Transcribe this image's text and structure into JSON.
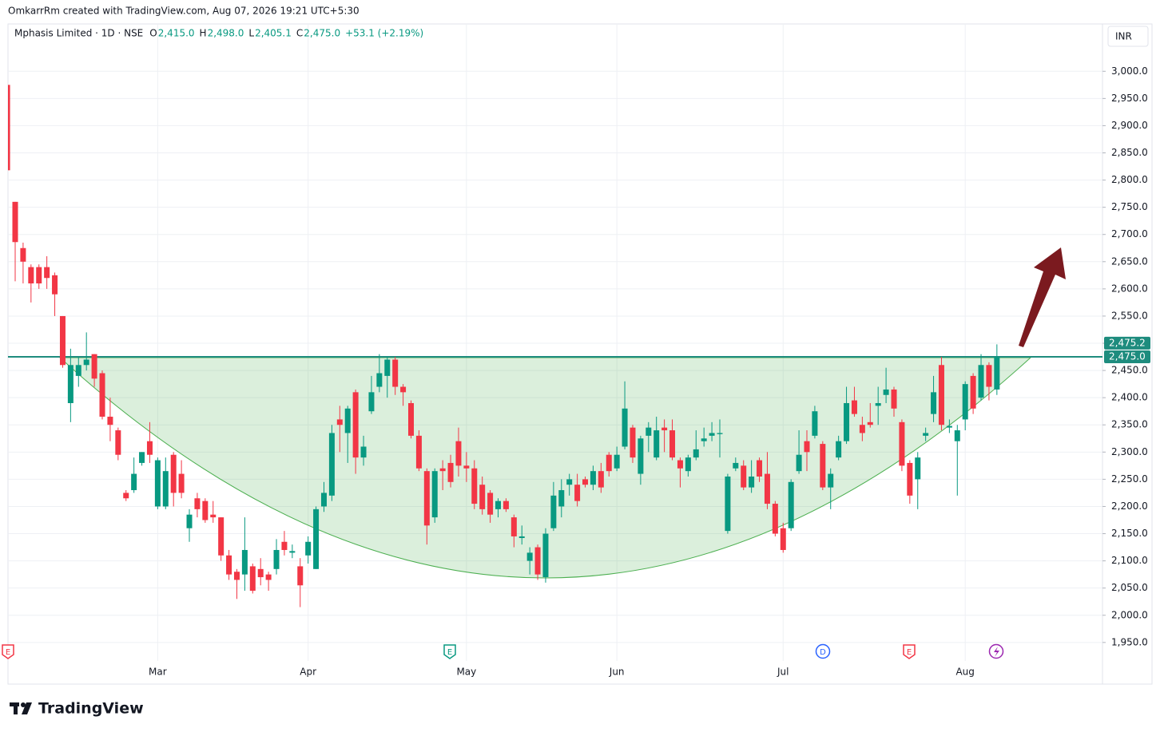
{
  "header": "OmkarrRm created with TradingView.com, Aug 07, 2026 19:21 UTC+5:30",
  "brand": "TradingView",
  "chart_data": {
    "type": "candlestick",
    "title": "Mphasis Limited · 1D · NSE",
    "ohlc_legend": [
      {
        "key": "O",
        "text": "2,415.0"
      },
      {
        "key": "H",
        "text": "2,498.0"
      },
      {
        "key": "L",
        "text": "2,405.1"
      },
      {
        "key": "C",
        "text": "2,475.0"
      }
    ],
    "change": "+53.1 (+2.19%)",
    "currency": "INR",
    "categories": [
      null,
      null,
      null,
      null,
      null,
      null,
      null,
      null,
      null,
      null,
      null,
      null,
      null,
      null,
      null,
      null,
      null,
      null,
      null,
      "Mar",
      null,
      null,
      null,
      null,
      null,
      null,
      null,
      null,
      null,
      null,
      null,
      null,
      null,
      null,
      null,
      null,
      null,
      null,
      "Apr",
      null,
      null,
      null,
      null,
      null,
      null,
      null,
      null,
      null,
      null,
      null,
      null,
      null,
      null,
      null,
      null,
      null,
      null,
      null,
      "May",
      null,
      null,
      null,
      null,
      null,
      null,
      null,
      null,
      null,
      null,
      null,
      null,
      null,
      null,
      null,
      null,
      null,
      null,
      "Jun",
      null,
      null,
      null,
      null,
      null,
      null,
      null,
      null,
      null,
      null,
      null,
      null,
      null,
      null,
      null,
      null,
      null,
      null,
      null,
      null,
      "Jul",
      null,
      null,
      null,
      null,
      null,
      null,
      null,
      null,
      null,
      null,
      null,
      null,
      null,
      null,
      null,
      null,
      null,
      null,
      null,
      null,
      null,
      null,
      "Aug",
      null,
      null,
      null,
      null
    ],
    "open": [
      2975,
      2760,
      2675,
      2640,
      2640,
      2640,
      2625,
      2550,
      2390,
      2440,
      2460,
      2480,
      2445,
      2365,
      2340,
      2225,
      2230,
      2280,
      2320,
      2200,
      2200,
      2295,
      2260,
      2160,
      2215,
      2210,
      2185,
      2180,
      2110,
      2080,
      2075,
      2090,
      2085,
      2075,
      2085,
      2135,
      2115,
      2090,
      2110,
      2085,
      2200,
      2220,
      2360,
      2335,
      2410,
      2290,
      2375,
      2420,
      2440,
      2470,
      2420,
      2390,
      2330,
      2265,
      2180,
      2270,
      2280,
      2320,
      2275,
      2270,
      2240,
      2225,
      2195,
      2210,
      2180,
      2142,
      2100,
      2125,
      2070,
      2160,
      2200,
      2240,
      2240,
      2250,
      2240,
      2265,
      2295,
      2270,
      2310,
      2345,
      2260,
      2330,
      2290,
      2345,
      2340,
      2285,
      2265,
      2290,
      2320,
      2330,
      2333,
      2155,
      2270,
      2275,
      2235,
      2285,
      2260,
      2205,
      2160,
      2160,
      2265,
      2320,
      2330,
      2315,
      2235,
      2290,
      2320,
      2395,
      2350,
      2355,
      2385,
      2405,
      2415,
      2355,
      2280,
      2250,
      2330,
      2370,
      2460,
      2345,
      2320,
      2360,
      2440,
      2400,
      2460,
      2415
    ],
    "high": [
      2978,
      2760,
      2685,
      2645,
      2645,
      2660,
      2630,
      2550,
      2490,
      2475,
      2520,
      2480,
      2450,
      2400,
      2345,
      2230,
      2290,
      2300,
      2355,
      2290,
      2290,
      2300,
      2285,
      2195,
      2225,
      2215,
      2210,
      2180,
      2120,
      2085,
      2180,
      2095,
      2105,
      2080,
      2140,
      2155,
      2130,
      2105,
      2145,
      2200,
      2245,
      2350,
      2385,
      2385,
      2415,
      2330,
      2440,
      2480,
      2475,
      2475,
      2425,
      2395,
      2340,
      2270,
      2270,
      2285,
      2295,
      2345,
      2300,
      2285,
      2255,
      2230,
      2215,
      2215,
      2185,
      2165,
      2125,
      2130,
      2160,
      2245,
      2250,
      2260,
      2260,
      2255,
      2275,
      2280,
      2300,
      2310,
      2430,
      2350,
      2330,
      2355,
      2365,
      2360,
      2360,
      2290,
      2295,
      2340,
      2345,
      2355,
      2360,
      2260,
      2290,
      2285,
      2285,
      2290,
      2300,
      2210,
      2170,
      2250,
      2340,
      2340,
      2385,
      2320,
      2270,
      2330,
      2420,
      2420,
      2365,
      2390,
      2420,
      2455,
      2420,
      2360,
      2285,
      2300,
      2345,
      2440,
      2475,
      2360,
      2350,
      2430,
      2445,
      2480,
      2465,
      2498
    ],
    "low": [
      2815,
      2614,
      2610,
      2575,
      2600,
      2600,
      2550,
      2455,
      2355,
      2420,
      2450,
      2420,
      2360,
      2320,
      2285,
      2210,
      2225,
      2275,
      2280,
      2195,
      2195,
      2200,
      2215,
      2135,
      2180,
      2170,
      2170,
      2100,
      2065,
      2030,
      2045,
      2040,
      2055,
      2045,
      2075,
      2110,
      2105,
      2015,
      2095,
      2085,
      2190,
      2210,
      2300,
      2280,
      2260,
      2275,
      2370,
      2410,
      2400,
      2405,
      2385,
      2325,
      2265,
      2130,
      2170,
      2230,
      2235,
      2255,
      2245,
      2195,
      2185,
      2170,
      2180,
      2190,
      2125,
      2130,
      2075,
      2065,
      2060,
      2155,
      2180,
      2220,
      2200,
      2235,
      2230,
      2225,
      2255,
      2265,
      2305,
      2280,
      2240,
      2300,
      2285,
      2300,
      2285,
      2235,
      2255,
      2285,
      2310,
      2320,
      2290,
      2150,
      2265,
      2230,
      2225,
      2245,
      2195,
      2145,
      2115,
      2155,
      2260,
      2265,
      2325,
      2230,
      2195,
      2285,
      2315,
      2365,
      2320,
      2345,
      2350,
      2390,
      2365,
      2265,
      2205,
      2195,
      2320,
      2355,
      2340,
      2335,
      2220,
      2340,
      2370,
      2395,
      2395,
      2405
    ],
    "close": [
      2818,
      2686,
      2650,
      2610,
      2610,
      2620,
      2590,
      2460,
      2460,
      2460,
      2470,
      2435,
      2365,
      2350,
      2295,
      2215,
      2260,
      2300,
      2295,
      2285,
      2265,
      2225,
      2225,
      2185,
      2195,
      2175,
      2180,
      2110,
      2075,
      2065,
      2120,
      2045,
      2070,
      2065,
      2120,
      2120,
      2118,
      2055,
      2135,
      2195,
      2225,
      2335,
      2350,
      2380,
      2290,
      2310,
      2410,
      2445,
      2470,
      2420,
      2410,
      2330,
      2270,
      2165,
      2265,
      2265,
      2245,
      2275,
      2270,
      2205,
      2195,
      2185,
      2210,
      2195,
      2145,
      2145,
      2115,
      2075,
      2150,
      2220,
      2230,
      2250,
      2210,
      2240,
      2265,
      2235,
      2265,
      2295,
      2380,
      2290,
      2325,
      2345,
      2340,
      2340,
      2290,
      2270,
      2290,
      2305,
      2325,
      2335,
      2335,
      2255,
      2280,
      2235,
      2255,
      2255,
      2205,
      2150,
      2120,
      2245,
      2295,
      2300,
      2375,
      2235,
      2260,
      2320,
      2390,
      2370,
      2335,
      2350,
      2390,
      2415,
      2380,
      2275,
      2220,
      2290,
      2335,
      2410,
      2350,
      2348,
      2340,
      2425,
      2380,
      2460,
      2420,
      2475
    ],
    "up_color": "#089981",
    "down_color": "#f23645",
    "ylim": [
      1916,
      3087
    ],
    "yticks": [
      {
        "value": 1950,
        "label": "1,950.0"
      },
      {
        "value": 2000,
        "label": "2,000.0"
      },
      {
        "value": 2050,
        "label": "2,050.0"
      },
      {
        "value": 2100,
        "label": "2,100.0"
      },
      {
        "value": 2150,
        "label": "2,150.0"
      },
      {
        "value": 2200,
        "label": "2,200.0"
      },
      {
        "value": 2250,
        "label": "2,250.0"
      },
      {
        "value": 2300,
        "label": "2,300.0"
      },
      {
        "value": 2350,
        "label": "2,350.0"
      },
      {
        "value": 2400,
        "label": "2,400.0"
      },
      {
        "value": 2450,
        "label": "2,450.0"
      },
      {
        "value": 2500,
        "label": "2,500.0"
      },
      {
        "value": 2550,
        "label": "2,550.0"
      },
      {
        "value": 2600,
        "label": "2,600.0"
      },
      {
        "value": 2650,
        "label": "2,650.0"
      },
      {
        "value": 2700,
        "label": "2,700.0"
      },
      {
        "value": 2750,
        "label": "2,750.0"
      },
      {
        "value": 2800,
        "label": "2,800.0"
      },
      {
        "value": 2850,
        "label": "2,850.0"
      },
      {
        "value": 2900,
        "label": "2,900.0"
      },
      {
        "value": 2950,
        "label": "2,950.0"
      },
      {
        "value": 3000,
        "label": "3,000.0"
      }
    ],
    "grid": true,
    "hline": {
      "value": 2475,
      "color": "#1e8c7e"
    },
    "price_labels": [
      {
        "value": 2475.2,
        "label": "2,475.2"
      },
      {
        "value": 2475,
        "label": "2,475.0"
      }
    ],
    "events": [
      "E",
      "E",
      "D",
      "E"
    ]
  }
}
